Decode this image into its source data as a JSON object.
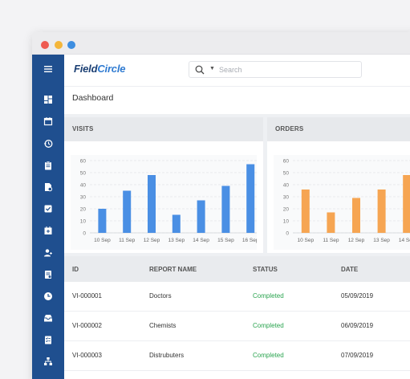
{
  "app": {
    "logo_part1": "Field",
    "logo_part2": "Circle",
    "search": {
      "placeholder": "Search"
    }
  },
  "window_controls": [
    "close",
    "minimize",
    "maximize"
  ],
  "sidebar": {
    "items": [
      {
        "icon": "menu-icon"
      },
      {
        "icon": "dashboard-icon"
      },
      {
        "icon": "calendar-icon"
      },
      {
        "icon": "history-icon"
      },
      {
        "icon": "clipboard-icon"
      },
      {
        "icon": "report-icon"
      },
      {
        "icon": "checkbox-icon"
      },
      {
        "icon": "calendar-add-icon"
      },
      {
        "icon": "user-add-icon"
      },
      {
        "icon": "document-icon"
      },
      {
        "icon": "clock-icon"
      },
      {
        "icon": "inbox-icon"
      },
      {
        "icon": "checklist-icon"
      },
      {
        "icon": "hierarchy-icon"
      }
    ]
  },
  "page": {
    "title": "Dashboard"
  },
  "cards": {
    "visits": {
      "title": "VISITS"
    },
    "orders": {
      "title": "ORDERS"
    }
  },
  "colors": {
    "visits": "#4a8fe4",
    "orders": "#f6a552",
    "sidebar": "#1f4f8f",
    "status_completed": "#2aa44f"
  },
  "chart_data": [
    {
      "type": "bar",
      "title": "VISITS",
      "categories": [
        "10 Sep",
        "11 Sep",
        "12 Sep",
        "13 Sep",
        "14 Sep",
        "15 Sep",
        "16 Sep"
      ],
      "values": [
        20,
        35,
        48,
        15,
        27,
        39,
        57
      ],
      "yticks": [
        0,
        10,
        20,
        30,
        40,
        50,
        60
      ],
      "ylim": [
        0,
        60
      ],
      "grid": true
    },
    {
      "type": "bar",
      "title": "ORDERS",
      "categories": [
        "10 Sep",
        "11 Sep",
        "12 Sep",
        "13 Sep",
        "14 Sep"
      ],
      "values": [
        36,
        17,
        29,
        36,
        48
      ],
      "yticks": [
        0,
        10,
        20,
        30,
        40,
        50,
        60
      ],
      "ylim": [
        0,
        60
      ],
      "grid": true
    }
  ],
  "table": {
    "headers": [
      "ID",
      "REPORT NAME",
      "STATUS",
      "DATE"
    ],
    "rows": [
      [
        "VI-000001",
        "Doctors",
        "Completed",
        "05/09/2019"
      ],
      [
        "VI-000002",
        "Chemists",
        "Completed",
        "06/09/2019"
      ],
      [
        "VI-000003",
        "Distrubuters",
        "Completed",
        "07/09/2019"
      ]
    ]
  }
}
